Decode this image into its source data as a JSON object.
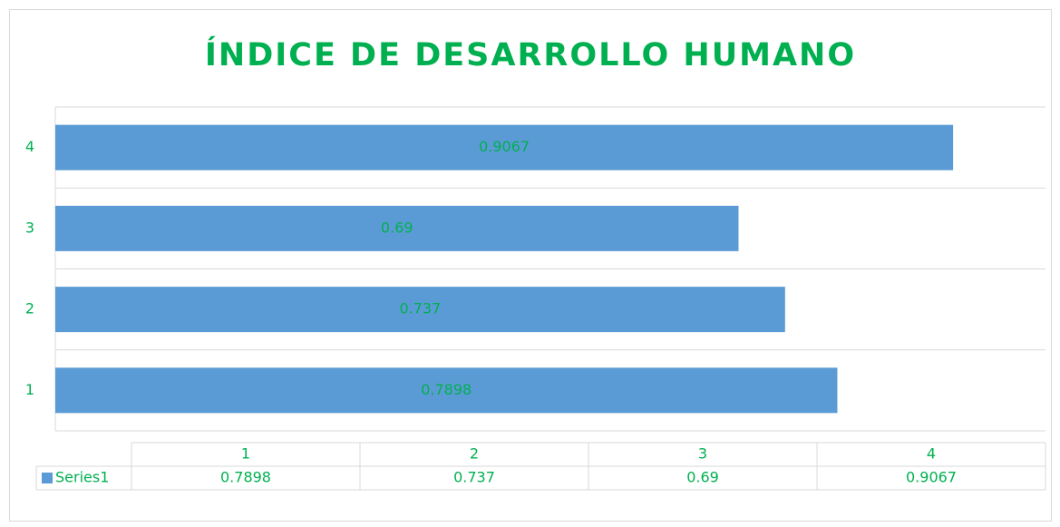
{
  "chart_data": {
    "type": "bar",
    "orientation": "horizontal",
    "title": "ÍNDICE DE DESARROLLO HUMANO",
    "categories": [
      "1",
      "2",
      "3",
      "4"
    ],
    "series": [
      {
        "name": "Series1",
        "color": "#5b9bd5",
        "values": [
          0.7898,
          0.737,
          0.69,
          0.9067
        ]
      }
    ],
    "xlim": [
      0,
      1
    ],
    "grid": true,
    "data_labels": true,
    "data_table": true,
    "text_color": "#00b050"
  }
}
